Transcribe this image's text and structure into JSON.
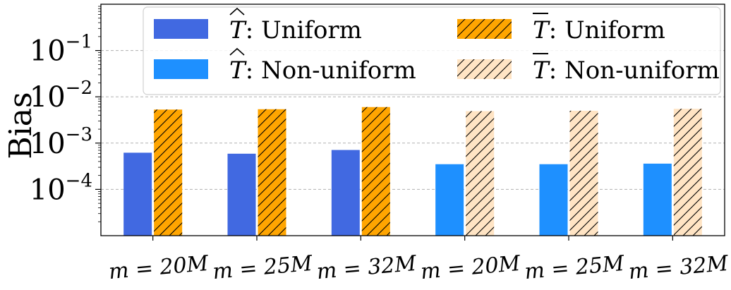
{
  "chart_data": {
    "type": "bar",
    "ylabel": "Bias",
    "xlabel": "",
    "yscale": "log",
    "ylim": [
      1e-05,
      1
    ],
    "grid": "y-major-dashed",
    "legend_position": "top",
    "categories": [
      "m = 20M",
      "m = 25M",
      "m = 32M",
      "m = 20M",
      "m = 25M",
      "m = 32M"
    ],
    "yticks": [
      {
        "base": "10",
        "exp": "−1",
        "value": 0.1
      },
      {
        "base": "10",
        "exp": "−2",
        "value": 0.01
      },
      {
        "base": "10",
        "exp": "−3",
        "value": 0.001
      },
      {
        "base": "10",
        "exp": "−4",
        "value": 0.0001
      }
    ],
    "series": [
      {
        "name": "T̂: Uniform",
        "symbol": "T",
        "accent": "hat",
        "text": ": Uniform",
        "color": "#4169e1",
        "hatch": false,
        "group": "hat",
        "values": [
          0.00062,
          0.00059,
          0.00071,
          null,
          null,
          null
        ]
      },
      {
        "name": "T̂: Non-uniform",
        "symbol": "T",
        "accent": "hat",
        "text": ": Non-uniform",
        "color": "#1e90ff",
        "hatch": false,
        "group": "hat",
        "values": [
          null,
          null,
          null,
          0.00035,
          0.00035,
          0.00036
        ]
      },
      {
        "name": "T̄: Uniform",
        "symbol": "T",
        "accent": "bar",
        "text": ": Uniform",
        "color": "#ffa500",
        "hatch": true,
        "group": "bar",
        "values": [
          0.0053,
          0.0054,
          0.006,
          null,
          null,
          null
        ]
      },
      {
        "name": "T̄: Non-uniform",
        "symbol": "T",
        "accent": "bar",
        "text": ": Non-uniform",
        "color": "#ffe4c4",
        "hatch": true,
        "group": "bar",
        "values": [
          null,
          null,
          null,
          0.0049,
          0.005,
          0.0055
        ]
      }
    ]
  }
}
